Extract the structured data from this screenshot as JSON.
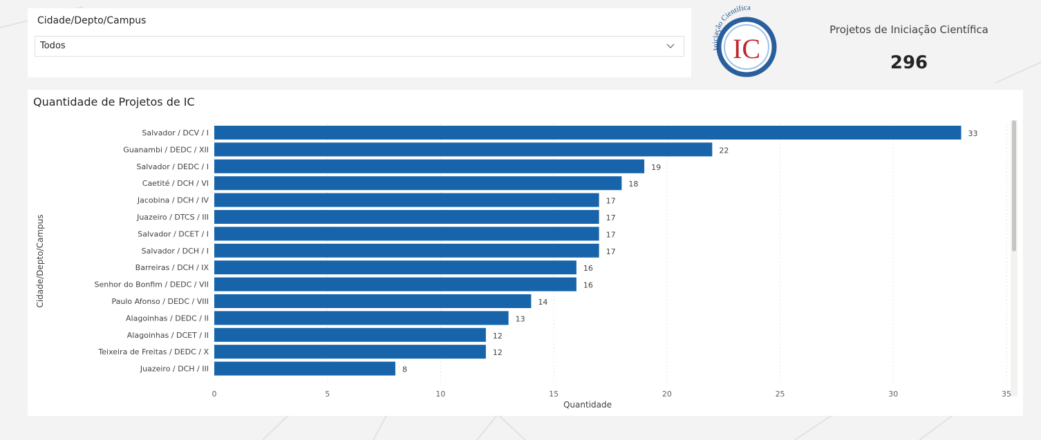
{
  "slicer": {
    "title": "Cidade/Depto/Campus",
    "selected": "Todos"
  },
  "logo": {
    "arc_text": "Iniciação Científica",
    "initials": "IC"
  },
  "kpi": {
    "label": "Projetos de Iniciação Científica",
    "value": "296"
  },
  "chart_data": {
    "type": "bar",
    "orientation": "horizontal",
    "title": "Quantidade de Projetos de IC",
    "xlabel": "Quantidade",
    "ylabel": "Cidade/Depto/Campus",
    "xlim": [
      0,
      35
    ],
    "xticks": [
      0,
      5,
      10,
      15,
      20,
      25,
      30,
      35
    ],
    "grid": true,
    "bar_color": "#1764ab",
    "categories": [
      "Salvador / DCV / I",
      "Guanambi / DEDC / XII",
      "Salvador / DEDC / I",
      "Caetité / DCH / VI",
      "Jacobina / DCH / IV",
      "Juazeiro / DTCS / III",
      "Salvador / DCET / I",
      "Salvador / DCH / I",
      "Barreiras / DCH / IX",
      "Senhor do Bonfim / DEDC / VII",
      "Paulo Afonso / DEDC / VIII",
      "Alagoinhas / DEDC / II",
      "Alagoinhas / DCET / II",
      "Teixeira de Freitas / DEDC / X",
      "Juazeiro / DCH / III"
    ],
    "values": [
      33,
      22,
      19,
      18,
      17,
      17,
      17,
      17,
      16,
      16,
      14,
      13,
      12,
      12,
      8
    ]
  }
}
